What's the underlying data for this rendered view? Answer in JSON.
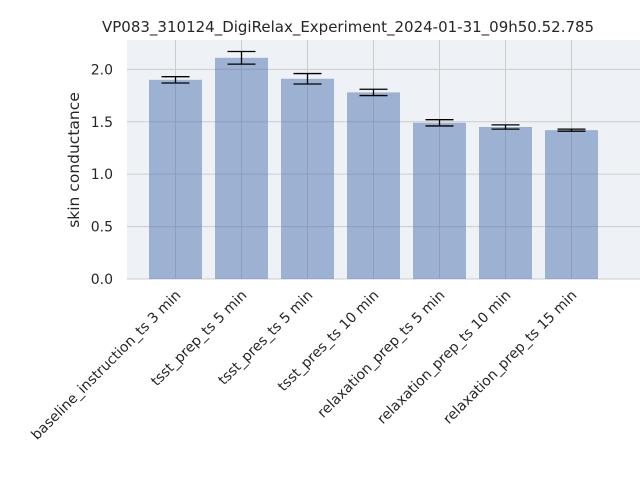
{
  "chart_data": {
    "type": "bar",
    "title": "VP083_310124_DigiRelax_Experiment_2024-01-31_09h50.52.785",
    "xlabel": "",
    "ylabel": "skin conductance",
    "categories": [
      "baseline_instruction_ts 3 min",
      "tsst_prep_ts 5 min",
      "tsst_pres_ts 5 min",
      "tsst_pres_ts 10 min",
      "relaxation_prep_ts 5 min",
      "relaxation_prep_ts 10 min",
      "relaxation_prep_ts 15 min"
    ],
    "values": [
      1.9,
      2.11,
      1.91,
      1.78,
      1.49,
      1.45,
      1.42
    ],
    "errors": [
      0.03,
      0.06,
      0.05,
      0.03,
      0.03,
      0.02,
      0.01
    ],
    "ylim": [
      0,
      2.28
    ],
    "yticks": [
      "0.0",
      "0.5",
      "1.0",
      "1.5",
      "2.0"
    ],
    "grid": true,
    "colors": {
      "bar": "#4c72b0",
      "background": "#eaeaf2",
      "grid": "#cccccc",
      "error_bar": "#000000"
    }
  }
}
